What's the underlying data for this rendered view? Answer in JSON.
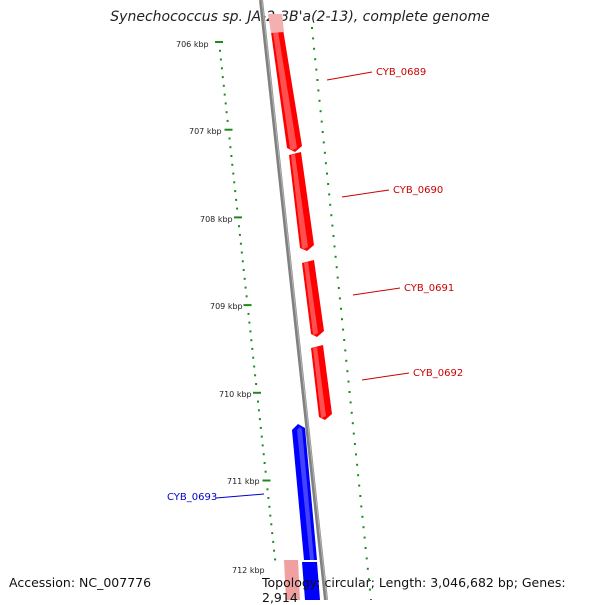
{
  "title": "Synechococcus sp. JA-2-3B'a(2-13), complete genome",
  "footer": {
    "accession": "Accession: NC_007776",
    "summary": "Topology: circular; Length: 3,046,682 bp; Genes: 2,914"
  },
  "ruler_labels": [
    "706 kbp",
    "707 kbp",
    "708 kbp",
    "709 kbp",
    "710 kbp",
    "711 kbp",
    "712 kbp"
  ],
  "genes": [
    {
      "id": "CYB_0689",
      "strand": "forward",
      "color": "#ff0000"
    },
    {
      "id": "CYB_0690",
      "strand": "forward",
      "color": "#ff0000"
    },
    {
      "id": "CYB_0691",
      "strand": "forward",
      "color": "#ff0000"
    },
    {
      "id": "CYB_0692",
      "strand": "forward",
      "color": "#ff0000"
    },
    {
      "id": "CYB_0693",
      "strand": "reverse",
      "color": "#0000ff"
    }
  ],
  "colors": {
    "backbone": "#808080",
    "ruler": "#1e8a1e",
    "forward_gene": "#ff0000",
    "reverse_gene": "#0000ff",
    "forward_label": "#cc0000",
    "reverse_label": "#0000cc"
  }
}
